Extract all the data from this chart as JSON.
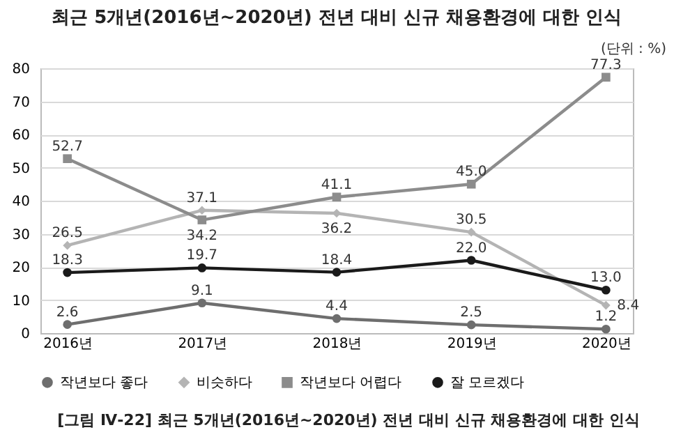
{
  "chart_data": {
    "type": "line",
    "title": "최근 5개년(2016년~2020년) 전년 대비 신규 채용환경에 대한 인식",
    "categories": [
      "2016년",
      "2017년",
      "2018년",
      "2019년",
      "2020년"
    ],
    "series": [
      {
        "name": "작년보다 좋다",
        "color": "#6e6e6e",
        "marker": "circle",
        "values": [
          2.6,
          9.1,
          4.4,
          2.5,
          1.2
        ],
        "value_labels": [
          "2.6",
          "9.1",
          "4.4",
          "2.5",
          "1.2"
        ]
      },
      {
        "name": "비슷하다",
        "color": "#b4b4b4",
        "marker": "diamond",
        "values": [
          26.5,
          37.1,
          36.2,
          30.5,
          8.4
        ],
        "value_labels": [
          "26.5",
          "37.1",
          "36.2",
          "30.5",
          "8.4"
        ]
      },
      {
        "name": "작년보다 어렵다",
        "color": "#8c8c8c",
        "marker": "square",
        "values": [
          52.7,
          34.2,
          41.1,
          45.0,
          77.3
        ],
        "value_labels": [
          "52.7",
          "34.2",
          "41.1",
          "45.0",
          "77.3"
        ]
      },
      {
        "name": "잘 모르겠다",
        "color": "#1a1a1a",
        "marker": "circle",
        "values": [
          18.3,
          19.7,
          18.4,
          22.0,
          13.0
        ],
        "value_labels": [
          "18.3",
          "19.7",
          "18.4",
          "22.0",
          "13.0"
        ]
      }
    ],
    "ylim": [
      0,
      80
    ],
    "yticks": [
      0,
      10,
      20,
      30,
      40,
      50,
      60,
      70,
      80
    ],
    "grid": "y",
    "legend": "bottom",
    "line_style": "solid",
    "annotations": [
      "(단위 : %)",
      "[그림 Ⅳ-22] 최근 5개년(2016년~2020년) 전년 대비 신규 채용환경에 대한 인식"
    ]
  }
}
